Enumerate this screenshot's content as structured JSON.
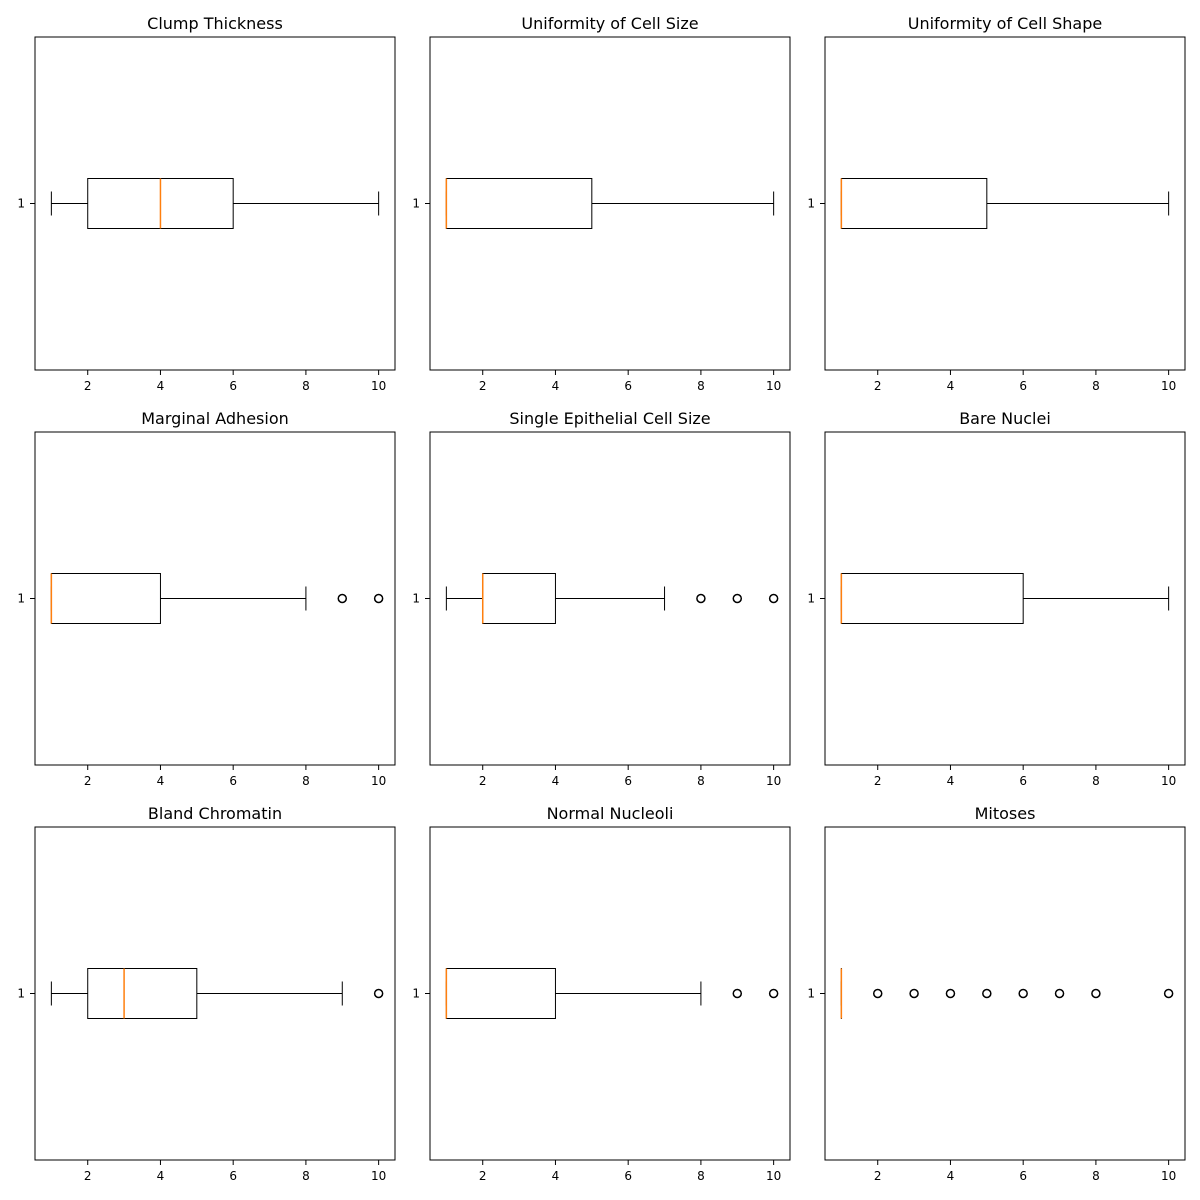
{
  "colors": {
    "box_stroke": "#000000",
    "median": "#ff7f0e",
    "background": "#ffffff",
    "axes_frame": "#000000"
  },
  "chart_data": [
    {
      "type": "boxplot",
      "orientation": "horizontal",
      "title": "Clump Thickness",
      "xlabel": "",
      "ylabel": "",
      "xlim": [
        0.55,
        10.45
      ],
      "xticks": [
        "2",
        "4",
        "6",
        "8",
        "10"
      ],
      "yticks": [
        "1"
      ],
      "min": 1,
      "q1": 2,
      "median": 4,
      "q3": 6,
      "max": 10,
      "outliers": []
    },
    {
      "type": "boxplot",
      "orientation": "horizontal",
      "title": "Uniformity of Cell Size",
      "xlabel": "",
      "ylabel": "",
      "xlim": [
        0.55,
        10.45
      ],
      "xticks": [
        "2",
        "4",
        "6",
        "8",
        "10"
      ],
      "yticks": [
        "1"
      ],
      "min": 1,
      "q1": 1,
      "median": 1,
      "q3": 5,
      "max": 10,
      "outliers": []
    },
    {
      "type": "boxplot",
      "orientation": "horizontal",
      "title": "Uniformity of Cell Shape",
      "xlabel": "",
      "ylabel": "",
      "xlim": [
        0.55,
        10.45
      ],
      "xticks": [
        "2",
        "4",
        "6",
        "8",
        "10"
      ],
      "yticks": [
        "1"
      ],
      "min": 1,
      "q1": 1,
      "median": 1,
      "q3": 5,
      "max": 10,
      "outliers": []
    },
    {
      "type": "boxplot",
      "orientation": "horizontal",
      "title": "Marginal Adhesion",
      "xlabel": "",
      "ylabel": "",
      "xlim": [
        0.55,
        10.45
      ],
      "xticks": [
        "2",
        "4",
        "6",
        "8",
        "10"
      ],
      "yticks": [
        "1"
      ],
      "min": 1,
      "q1": 1,
      "median": 1,
      "q3": 4,
      "max": 8,
      "outliers": [
        9,
        10
      ]
    },
    {
      "type": "boxplot",
      "orientation": "horizontal",
      "title": "Single Epithelial Cell Size",
      "xlabel": "",
      "ylabel": "",
      "xlim": [
        0.55,
        10.45
      ],
      "xticks": [
        "2",
        "4",
        "6",
        "8",
        "10"
      ],
      "yticks": [
        "1"
      ],
      "min": 1,
      "q1": 2,
      "median": 2,
      "q3": 4,
      "max": 7,
      "outliers": [
        8,
        9,
        10
      ]
    },
    {
      "type": "boxplot",
      "orientation": "horizontal",
      "title": "Bare Nuclei",
      "xlabel": "",
      "ylabel": "",
      "xlim": [
        0.55,
        10.45
      ],
      "xticks": [
        "2",
        "4",
        "6",
        "8",
        "10"
      ],
      "yticks": [
        "1"
      ],
      "min": 1,
      "q1": 1,
      "median": 1,
      "q3": 6,
      "max": 10,
      "outliers": []
    },
    {
      "type": "boxplot",
      "orientation": "horizontal",
      "title": "Bland Chromatin",
      "xlabel": "",
      "ylabel": "",
      "xlim": [
        0.55,
        10.45
      ],
      "xticks": [
        "2",
        "4",
        "6",
        "8",
        "10"
      ],
      "yticks": [
        "1"
      ],
      "min": 1,
      "q1": 2,
      "median": 3,
      "q3": 5,
      "max": 9,
      "outliers": [
        10
      ]
    },
    {
      "type": "boxplot",
      "orientation": "horizontal",
      "title": "Normal Nucleoli",
      "xlabel": "",
      "ylabel": "",
      "xlim": [
        0.55,
        10.45
      ],
      "xticks": [
        "2",
        "4",
        "6",
        "8",
        "10"
      ],
      "yticks": [
        "1"
      ],
      "min": 1,
      "q1": 1,
      "median": 1,
      "q3": 4,
      "max": 8,
      "outliers": [
        9,
        10
      ]
    },
    {
      "type": "boxplot",
      "orientation": "horizontal",
      "title": "Mitoses",
      "xlabel": "",
      "ylabel": "",
      "xlim": [
        0.55,
        10.45
      ],
      "xticks": [
        "2",
        "4",
        "6",
        "8",
        "10"
      ],
      "yticks": [
        "1"
      ],
      "min": 1,
      "q1": 1,
      "median": 1,
      "q3": 1,
      "max": 1,
      "outliers": [
        2,
        3,
        4,
        5,
        6,
        7,
        8,
        10
      ]
    }
  ]
}
